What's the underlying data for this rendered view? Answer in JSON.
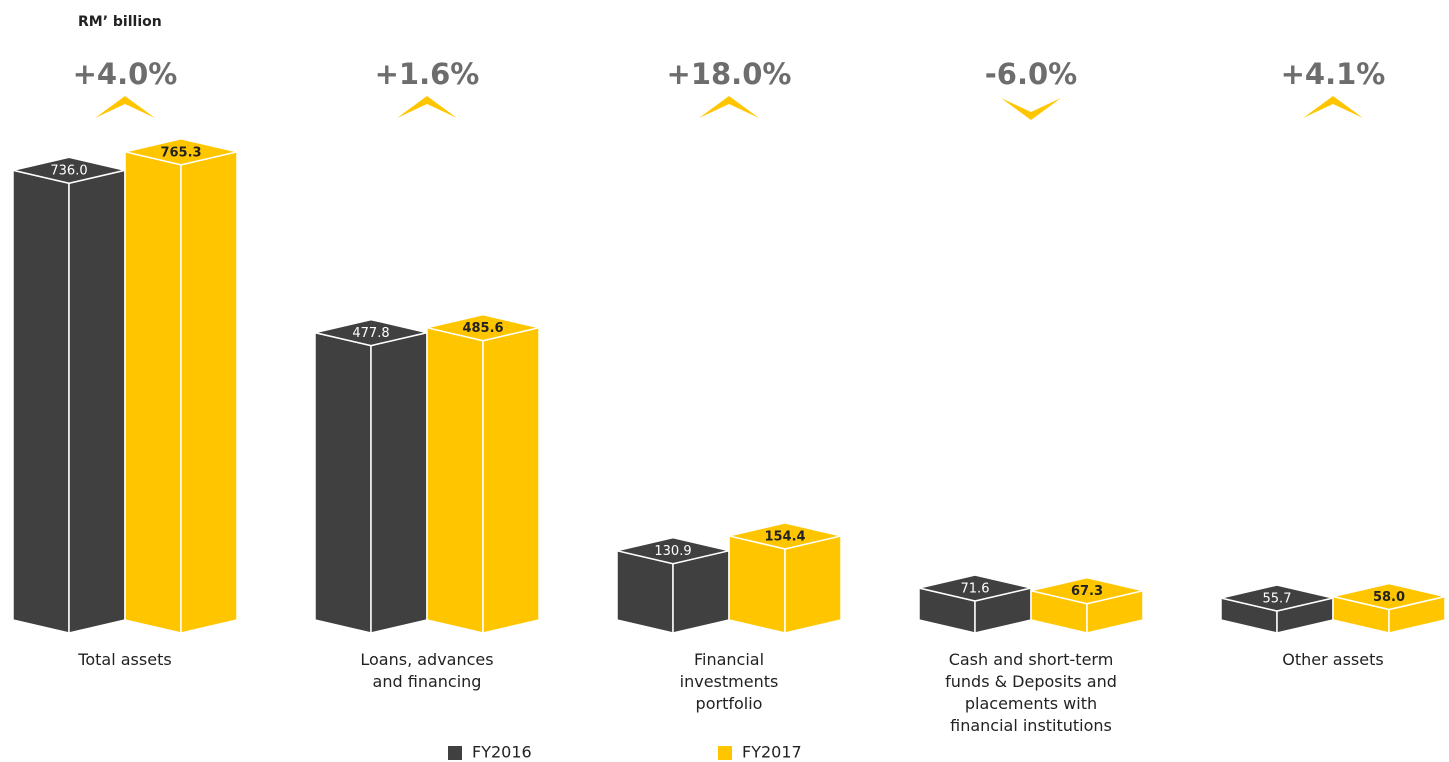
{
  "chart_data": {
    "type": "bar",
    "unit_label": "RM’ billion",
    "categories": [
      "Total assets",
      "Loans, advances\nand financing",
      "Financial\ninvestments\nportfolio",
      "Cash and short-term\nfunds & Deposits and\nplacements with\nfinancial institutions",
      "Other assets"
    ],
    "annotations": [
      "+4.0%",
      "+1.6%",
      "+18.0%",
      "-6.0%",
      "+4.1%"
    ],
    "series": [
      {
        "name": "FY2016",
        "color": "#404040",
        "values": [
          736.0,
          477.8,
          130.9,
          71.6,
          55.7
        ],
        "value_labels": [
          "736.0",
          "477.8",
          "130.9",
          "71.6",
          "55.7"
        ]
      },
      {
        "name": "FY2017",
        "color": "#ffc600",
        "values": [
          765.3,
          485.6,
          154.4,
          67.3,
          58.0
        ],
        "value_labels": [
          "765.3",
          "485.6",
          "154.4",
          "67.3",
          "58.0"
        ]
      }
    ],
    "ylim": [
      0,
      800
    ]
  }
}
